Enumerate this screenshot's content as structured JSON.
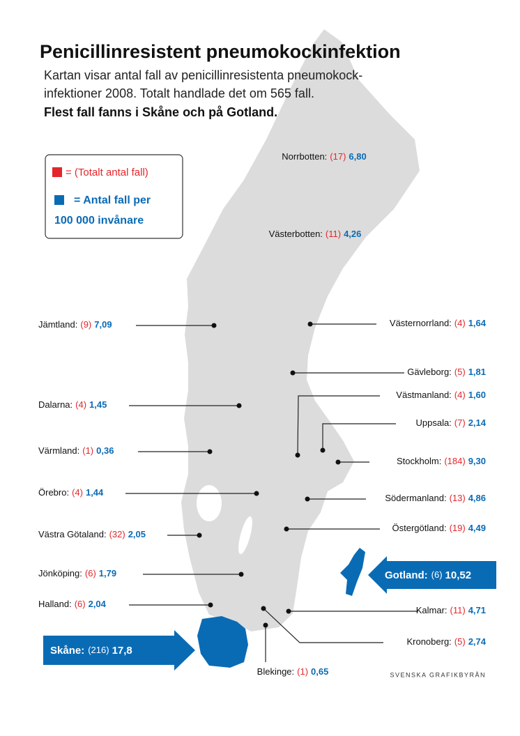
{
  "header": {
    "title": "Penicillinresistent pneumokockinfektion",
    "subtitle_lines": [
      "Kartan visar antal fall av penicillinresistenta pneumokock-",
      "infektioner 2008. Totalt handlade det om 565 fall."
    ],
    "highlight": "Flest fall fanns i Skåne och på Gotland."
  },
  "legend": {
    "count_label": "= (Totalt antal fall)",
    "rate_label_lines": [
      "= Antal fall per",
      "100 000 invånare"
    ]
  },
  "regions": [
    {
      "name": "Norrbotten:",
      "count": "(17)",
      "rate": "6,80"
    },
    {
      "name": "Västerbotten:",
      "count": "(11)",
      "rate": "4,26"
    },
    {
      "name": "Jämtland:",
      "count": "(9)",
      "rate": "7,09"
    },
    {
      "name": "Västernorrland:",
      "count": "(4)",
      "rate": "1,64"
    },
    {
      "name": "Gävleborg:",
      "count": "(5)",
      "rate": "1,81"
    },
    {
      "name": "Dalarna:",
      "count": "(4)",
      "rate": "1,45"
    },
    {
      "name": "Västmanland:",
      "count": "(4)",
      "rate": "1,60"
    },
    {
      "name": "Uppsala:",
      "count": "(7)",
      "rate": "2,14"
    },
    {
      "name": "Värmland:",
      "count": "(1)",
      "rate": "0,36"
    },
    {
      "name": "Stockholm:",
      "count": "(184)",
      "rate": "9,30"
    },
    {
      "name": "Örebro:",
      "count": "(4)",
      "rate": "1,44"
    },
    {
      "name": "Södermanland:",
      "count": "(13)",
      "rate": "4,86"
    },
    {
      "name": "Västra Götaland:",
      "count": "(32)",
      "rate": "2,05"
    },
    {
      "name": "Östergötland:",
      "count": "(19)",
      "rate": "4,49"
    },
    {
      "name": "Jönköping:",
      "count": "(6)",
      "rate": "1,79"
    },
    {
      "name": "Halland:",
      "count": "(6)",
      "rate": "2,04"
    },
    {
      "name": "Kalmar:",
      "count": "(11)",
      "rate": "4,71"
    },
    {
      "name": "Kronoberg:",
      "count": "(5)",
      "rate": "2,74"
    },
    {
      "name": "Blekinge:",
      "count": "(1)",
      "rate": "0,65"
    }
  ],
  "callouts": [
    {
      "name": "Gotland:",
      "count": "(6)",
      "rate": "10,52"
    },
    {
      "name": "Skåne:",
      "count": "(216)",
      "rate": "17,8"
    }
  ],
  "credit": "SVENSKA GRAFIKBYRÅN"
}
